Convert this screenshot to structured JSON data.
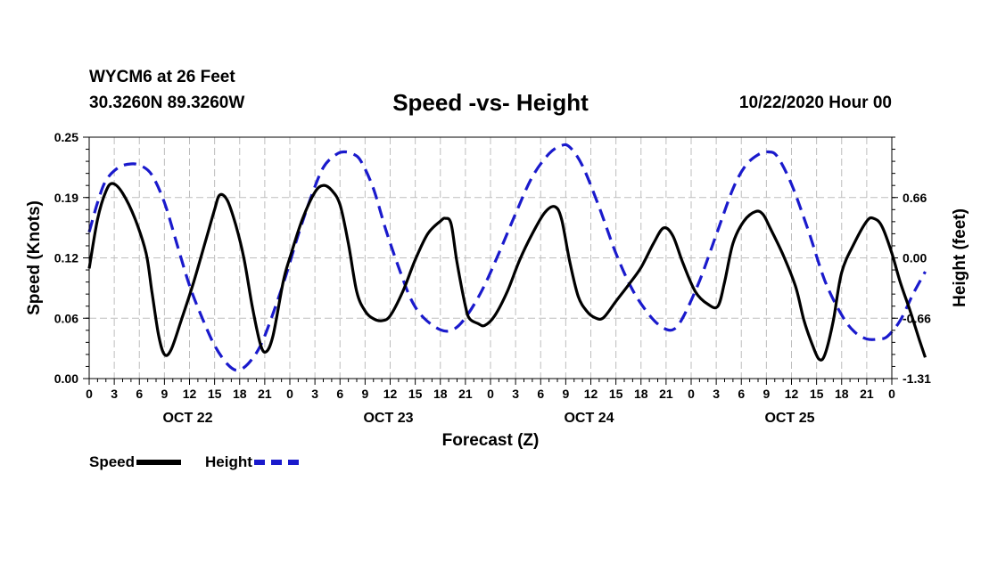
{
  "header": {
    "station": "WYCM6 at 26 Feet",
    "coords": "30.3260N 89.3260W",
    "title": "Speed -vs- Height",
    "datetime": "10/22/2020 Hour 00"
  },
  "colors": {
    "speed": "#000000",
    "height": "#1a1acc",
    "grid": "#bdbdbd"
  },
  "chart_data": {
    "type": "line",
    "title": "Speed -vs- Height",
    "xlabel": "Forecast (Z)",
    "ylabel": "Speed (Knots)",
    "y2label": "Height (feet)",
    "x_range_hours": [
      0,
      96
    ],
    "ylim": [
      0,
      0.25
    ],
    "y2lim": [
      -1.31,
      1.31
    ],
    "y_ticks": [
      "0.00",
      "0.06",
      "0.12",
      "0.19",
      "0.25"
    ],
    "y_tick_values": [
      0,
      0.0625,
      0.125,
      0.1875,
      0.25
    ],
    "y2_ticks": [
      "-1.31",
      "-0.66",
      "0.00",
      "0.66"
    ],
    "y2_tick_values": [
      -1.31,
      -0.655,
      0,
      0.655
    ],
    "x_tick_labels": [
      "0",
      "3",
      "6",
      "9",
      "12",
      "15",
      "18",
      "21",
      "0",
      "3",
      "6",
      "9",
      "12",
      "15",
      "18",
      "21",
      "0",
      "3",
      "6",
      "9",
      "12",
      "15",
      "18",
      "21",
      "0",
      "3",
      "6",
      "9",
      "12",
      "15",
      "18",
      "21",
      "0"
    ],
    "day_labels": [
      "OCT 22",
      "OCT 23",
      "OCT 24",
      "OCT 25"
    ],
    "grid": true,
    "series": [
      {
        "name": "Speed",
        "axis": "left",
        "style": "solid",
        "points": [
          [
            0,
            0.114
          ],
          [
            1,
            0.165
          ],
          [
            2,
            0.194
          ],
          [
            2.8,
            0.202
          ],
          [
            4,
            0.192
          ],
          [
            5.5,
            0.165
          ],
          [
            6.8,
            0.13
          ],
          [
            7.5,
            0.09
          ],
          [
            8.3,
            0.045
          ],
          [
            9,
            0.025
          ],
          [
            9.8,
            0.03
          ],
          [
            11,
            0.06
          ],
          [
            12.5,
            0.1
          ],
          [
            14,
            0.145
          ],
          [
            15,
            0.175
          ],
          [
            15.6,
            0.19
          ],
          [
            16.5,
            0.185
          ],
          [
            17.5,
            0.16
          ],
          [
            18.5,
            0.125
          ],
          [
            19.5,
            0.075
          ],
          [
            20.5,
            0.035
          ],
          [
            21.2,
            0.028
          ],
          [
            22,
            0.045
          ],
          [
            23.2,
            0.1
          ],
          [
            24,
            0.125
          ],
          [
            25.5,
            0.165
          ],
          [
            27,
            0.193
          ],
          [
            28,
            0.2
          ],
          [
            29,
            0.195
          ],
          [
            30,
            0.18
          ],
          [
            31,
            0.14
          ],
          [
            32,
            0.09
          ],
          [
            33,
            0.07
          ],
          [
            34,
            0.062
          ],
          [
            35,
            0.06
          ],
          [
            36,
            0.065
          ],
          [
            37.5,
            0.09
          ],
          [
            39,
            0.123
          ],
          [
            40.5,
            0.15
          ],
          [
            42,
            0.163
          ],
          [
            42.6,
            0.166
          ],
          [
            43.3,
            0.16
          ],
          [
            44,
            0.12
          ],
          [
            45,
            0.075
          ],
          [
            45.5,
            0.062
          ],
          [
            46.5,
            0.057
          ],
          [
            47.3,
            0.055
          ],
          [
            48.5,
            0.065
          ],
          [
            50,
            0.09
          ],
          [
            51.5,
            0.123
          ],
          [
            53,
            0.15
          ],
          [
            54.5,
            0.172
          ],
          [
            55.7,
            0.178
          ],
          [
            56.5,
            0.165
          ],
          [
            57.5,
            0.12
          ],
          [
            58.5,
            0.085
          ],
          [
            59.5,
            0.07
          ],
          [
            60.5,
            0.063
          ],
          [
            61.5,
            0.063
          ],
          [
            63,
            0.08
          ],
          [
            64.5,
            0.097
          ],
          [
            66,
            0.115
          ],
          [
            67.5,
            0.14
          ],
          [
            68.7,
            0.156
          ],
          [
            69.8,
            0.148
          ],
          [
            71,
            0.12
          ],
          [
            72.5,
            0.09
          ],
          [
            74,
            0.077
          ],
          [
            75.2,
            0.075
          ],
          [
            76,
            0.1
          ],
          [
            77,
            0.14
          ],
          [
            78.3,
            0.163
          ],
          [
            79.7,
            0.173
          ],
          [
            80.6,
            0.17
          ],
          [
            81.5,
            0.155
          ],
          [
            83,
            0.128
          ],
          [
            84.5,
            0.095
          ],
          [
            85.5,
            0.06
          ],
          [
            86.5,
            0.035
          ],
          [
            87.3,
            0.02
          ],
          [
            88,
            0.025
          ],
          [
            89,
            0.06
          ],
          [
            90,
            0.11
          ],
          [
            91.5,
            0.14
          ],
          [
            93,
            0.163
          ],
          [
            93.8,
            0.166
          ],
          [
            94.8,
            0.158
          ],
          [
            96,
            0.13
          ],
          [
            97,
            0.1
          ],
          [
            98.2,
            0.07
          ],
          [
            99.3,
            0.04
          ],
          [
            100,
            0.022
          ]
        ]
      },
      {
        "name": "Height",
        "axis": "right",
        "style": "dashed",
        "points": [
          [
            0,
            0.28
          ],
          [
            1,
            0.6
          ],
          [
            2,
            0.84
          ],
          [
            3.5,
            0.98
          ],
          [
            5,
            1.02
          ],
          [
            6.2,
            1.0
          ],
          [
            7.5,
            0.9
          ],
          [
            9,
            0.6
          ],
          [
            10.5,
            0.15
          ],
          [
            12,
            -0.3
          ],
          [
            13.5,
            -0.65
          ],
          [
            15,
            -0.95
          ],
          [
            16.5,
            -1.15
          ],
          [
            17.7,
            -1.22
          ],
          [
            19,
            -1.15
          ],
          [
            20.5,
            -0.95
          ],
          [
            22,
            -0.6
          ],
          [
            23.5,
            -0.2
          ],
          [
            25,
            0.25
          ],
          [
            26.5,
            0.65
          ],
          [
            28,
            0.98
          ],
          [
            29.5,
            1.12
          ],
          [
            30.5,
            1.15
          ],
          [
            31.5,
            1.13
          ],
          [
            32.5,
            1.05
          ],
          [
            34,
            0.75
          ],
          [
            35.5,
            0.3
          ],
          [
            37,
            -0.1
          ],
          [
            38.5,
            -0.45
          ],
          [
            40,
            -0.65
          ],
          [
            42,
            -0.78
          ],
          [
            43.5,
            -0.78
          ],
          [
            45,
            -0.65
          ],
          [
            47,
            -0.35
          ],
          [
            49,
            0.05
          ],
          [
            51,
            0.48
          ],
          [
            53,
            0.88
          ],
          [
            55,
            1.13
          ],
          [
            56.5,
            1.22
          ],
          [
            57.5,
            1.2
          ],
          [
            59,
            1.0
          ],
          [
            61,
            0.55
          ],
          [
            63,
            0.05
          ],
          [
            65,
            -0.35
          ],
          [
            67,
            -0.62
          ],
          [
            68.5,
            -0.75
          ],
          [
            69.8,
            -0.78
          ],
          [
            71,
            -0.65
          ],
          [
            73,
            -0.25
          ],
          [
            75,
            0.25
          ],
          [
            77,
            0.75
          ],
          [
            78.5,
            1.0
          ],
          [
            80,
            1.12
          ],
          [
            81.2,
            1.15
          ],
          [
            82.3,
            1.1
          ],
          [
            84,
            0.8
          ],
          [
            86,
            0.3
          ],
          [
            88,
            -0.25
          ],
          [
            90,
            -0.62
          ],
          [
            91.5,
            -0.8
          ],
          [
            93,
            -0.88
          ],
          [
            94.5,
            -0.88
          ],
          [
            95.5,
            -0.85
          ],
          [
            97,
            -0.68
          ],
          [
            98.5,
            -0.4
          ],
          [
            100,
            -0.15
          ]
        ]
      }
    ]
  },
  "legend": {
    "speed_label": "Speed",
    "height_label": "Height"
  }
}
